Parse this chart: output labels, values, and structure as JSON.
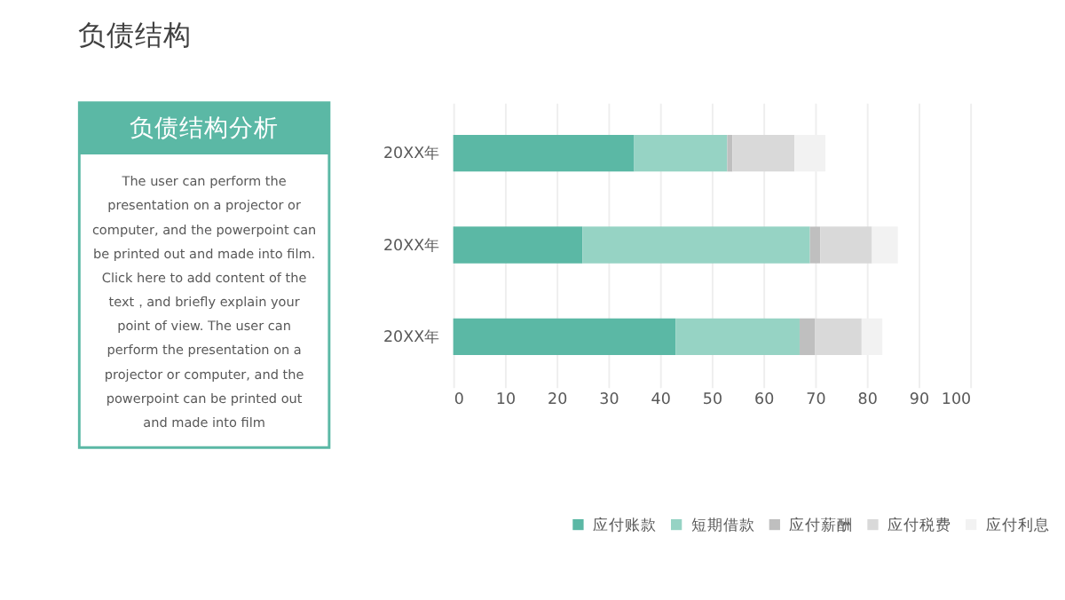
{
  "chart_data": [
    {
      "type": "other",
      "title": "负债结构",
      "subtitle": "负债结构分析",
      "color": "#5bb8a5",
      "annotations": [
        "The user can perform the",
        "presentation on a projector or",
        "computer, and the powerpoint can",
        "be printed out and made into film.",
        "Click here to add content of the",
        "text，and briefly explain your",
        "point of view. The user can",
        "perform the presentation on a",
        "projector or computer, and the",
        "powerpoint can be printed out",
        "and made into film"
      ]
    },
    {
      "type": "bar",
      "orientation": "horizontal",
      "stacked": true,
      "categories": [
        "20XX年",
        "20XX年",
        "20XX年"
      ],
      "series": [
        {
          "name": "应付账款",
          "color": "#5bb8a5",
          "values": [
            35,
            25,
            43
          ]
        },
        {
          "name": "短期借款",
          "color": "#96d3c4",
          "values": [
            18,
            44,
            24
          ]
        },
        {
          "name": "应付薪酬",
          "color": "#bfbfbf",
          "values": [
            1,
            2,
            3
          ]
        },
        {
          "name": "应付税费",
          "color": "#d9d9d9",
          "values": [
            12,
            10,
            9
          ]
        },
        {
          "name": "应付利息",
          "color": "#f2f2f2",
          "values": [
            6,
            5,
            4
          ]
        }
      ],
      "xlim": [
        0,
        100
      ],
      "xticks": [
        0,
        10,
        20,
        30,
        40,
        50,
        60,
        70,
        80,
        90,
        100
      ],
      "grid": "x",
      "legend": "bottom"
    }
  ]
}
